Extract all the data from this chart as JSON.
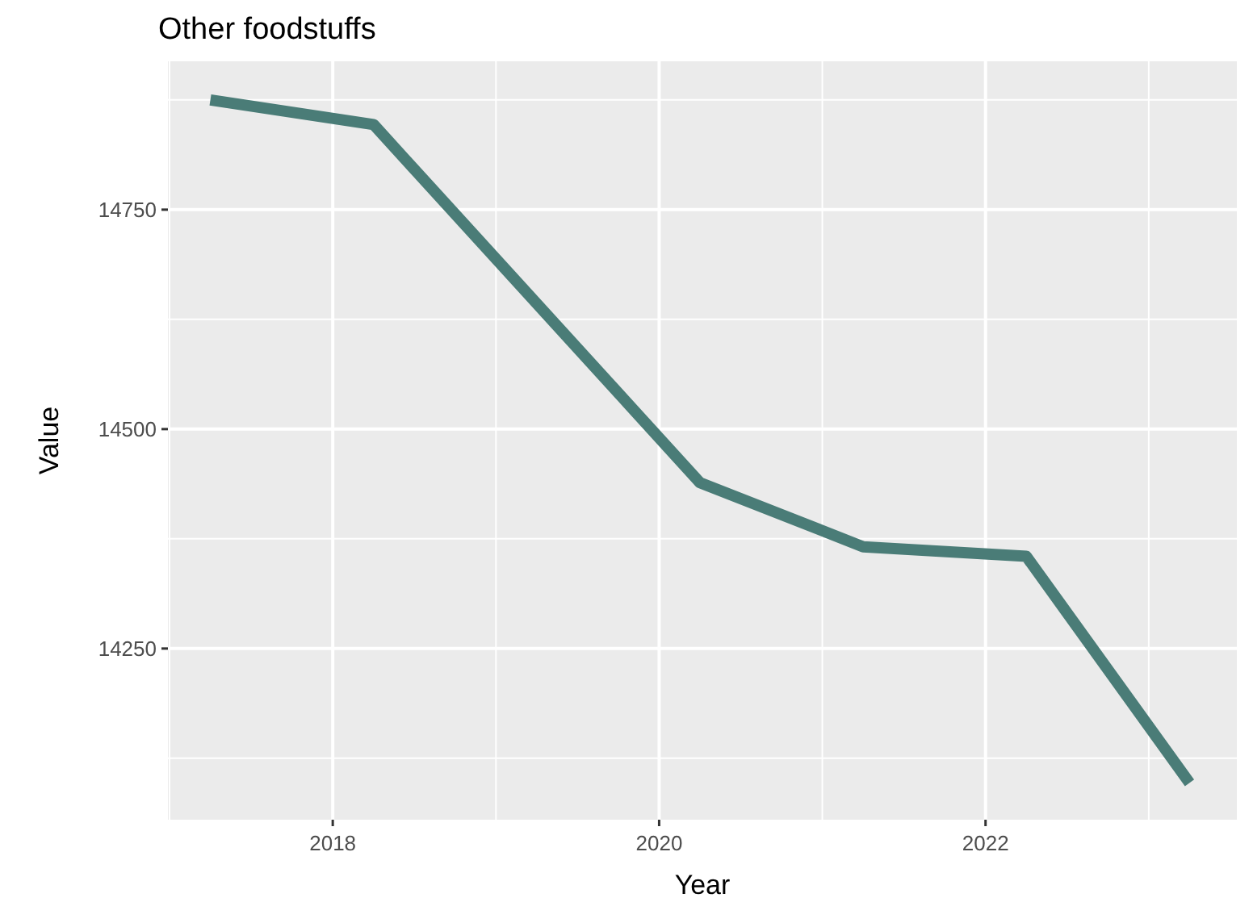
{
  "chart_data": {
    "type": "line",
    "title": "Other foodstuffs",
    "xlabel": "Year",
    "ylabel": "Value",
    "x": [
      2017.25,
      2018.25,
      2020.25,
      2021.25,
      2022.25,
      2023.25
    ],
    "series": [
      {
        "color": "#4a7c77",
        "values": [
          14875,
          14847,
          14439,
          14366,
          14355,
          14097
        ]
      }
    ],
    "xlim": [
      2016.99,
      2023.54
    ],
    "ylim": [
      14055,
      14919
    ],
    "xticks": [
      {
        "value": 2017,
        "label": null
      },
      2018,
      {
        "value": 2019,
        "label": null
      },
      2020,
      {
        "value": 2021,
        "label": null
      },
      2022,
      {
        "value": 2023,
        "label": null
      }
    ],
    "yticks": [
      {
        "value": 14125,
        "label": null
      },
      14250,
      {
        "value": 14375,
        "label": null
      },
      14500,
      {
        "value": 14625,
        "label": null
      },
      14750,
      {
        "value": 14875,
        "label": null
      }
    ],
    "grid": true,
    "marker": "none",
    "line_style": "solid"
  }
}
